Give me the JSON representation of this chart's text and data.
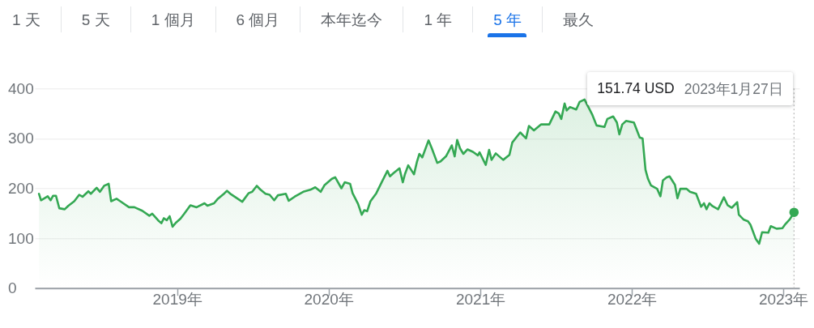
{
  "chart_data": {
    "type": "area",
    "color": "#34a853",
    "x": [
      "2018-02-02",
      "2018-02-07",
      "2018-02-23",
      "2018-03-02",
      "2018-03-08",
      "2018-03-15",
      "2018-03-23",
      "2018-04-05",
      "2018-04-14",
      "2018-04-28",
      "2018-05-10",
      "2018-05-18",
      "2018-06-01",
      "2018-06-07",
      "2018-06-21",
      "2018-06-29",
      "2018-07-09",
      "2018-07-20",
      "2018-07-26",
      "2018-08-08",
      "2018-08-17",
      "2018-09-07",
      "2018-09-20",
      "2018-10-09",
      "2018-10-26",
      "2018-11-02",
      "2018-11-16",
      "2018-11-24",
      "2018-11-30",
      "2018-12-07",
      "2018-12-14",
      "2018-12-21",
      "2018-12-29",
      "2019-01-09",
      "2019-01-18",
      "2019-02-02",
      "2019-02-17",
      "2019-03-08",
      "2019-03-15",
      "2019-03-31",
      "2019-04-08",
      "2019-04-25",
      "2019-05-01",
      "2019-05-11",
      "2019-06-07",
      "2019-06-22",
      "2019-07-01",
      "2019-07-12",
      "2019-07-20",
      "2019-08-02",
      "2019-08-12",
      "2019-08-23",
      "2019-09-01",
      "2019-09-20",
      "2019-09-27",
      "2019-10-11",
      "2019-11-01",
      "2019-11-18",
      "2019-11-30",
      "2019-12-13",
      "2019-12-22",
      "2020-01-09",
      "2020-01-17",
      "2020-02-01",
      "2020-02-09",
      "2020-02-22",
      "2020-02-28",
      "2020-03-12",
      "2020-03-21",
      "2020-03-27",
      "2020-04-03",
      "2020-04-11",
      "2020-04-25",
      "2020-05-08",
      "2020-05-22",
      "2020-05-28",
      "2020-06-05",
      "2020-06-20",
      "2020-06-28",
      "2020-07-03",
      "2020-07-11",
      "2020-07-25",
      "2020-08-01",
      "2020-08-07",
      "2020-08-14",
      "2020-08-29",
      "2020-09-06",
      "2020-09-19",
      "2020-09-27",
      "2020-10-10",
      "2020-10-24",
      "2020-10-31",
      "2020-11-06",
      "2020-11-13",
      "2020-11-21",
      "2020-12-01",
      "2020-12-14",
      "2020-12-26",
      "2020-12-30",
      "2021-01-14",
      "2021-01-22",
      "2021-01-28",
      "2021-02-07",
      "2021-02-25",
      "2021-03-12",
      "2021-03-19",
      "2021-04-07",
      "2021-04-21",
      "2021-04-28",
      "2021-05-10",
      "2021-05-27",
      "2021-06-16",
      "2021-07-01",
      "2021-07-09",
      "2021-07-15",
      "2021-07-23",
      "2021-07-28",
      "2021-08-05",
      "2021-08-20",
      "2021-08-28",
      "2021-09-09",
      "2021-09-28",
      "2021-10-08",
      "2021-10-27",
      "2021-11-03",
      "2021-11-17",
      "2021-11-26",
      "2021-12-02",
      "2021-12-09",
      "2021-12-18",
      "2022-01-06",
      "2022-01-20",
      "2022-01-27",
      "2022-02-03",
      "2022-02-09",
      "2022-02-16",
      "2022-03-03",
      "2022-03-11",
      "2022-03-17",
      "2022-03-26",
      "2022-04-02",
      "2022-04-15",
      "2022-04-21",
      "2022-04-28",
      "2022-05-13",
      "2022-05-21",
      "2022-06-05",
      "2022-06-17",
      "2022-06-24",
      "2022-06-30",
      "2022-07-07",
      "2022-07-15",
      "2022-07-28",
      "2022-08-11",
      "2022-08-20",
      "2022-08-30",
      "2022-09-12",
      "2022-09-16",
      "2022-09-28",
      "2022-10-08",
      "2022-10-14",
      "2022-10-27",
      "2022-11-04",
      "2022-11-11",
      "2022-11-26",
      "2022-12-02",
      "2022-12-16",
      "2022-12-30",
      "2023-01-06",
      "2023-01-17",
      "2023-01-27"
    ],
    "values": [
      189,
      176,
      184,
      176,
      185,
      185,
      160,
      158,
      165,
      174,
      187,
      183,
      194,
      189,
      201,
      193,
      205,
      209,
      174,
      179,
      174,
      162,
      162,
      155,
      145,
      149,
      136,
      130,
      140,
      136,
      144,
      123,
      131,
      139,
      149,
      166,
      162,
      170,
      165,
      170,
      178,
      190,
      195,
      188,
      173,
      190,
      193,
      205,
      198,
      189,
      187,
      176,
      186,
      189,
      175,
      183,
      193,
      197,
      202,
      193,
      206,
      219,
      222,
      200,
      212,
      209,
      190,
      169,
      147,
      156,
      154,
      174,
      190,
      212,
      235,
      224,
      230,
      240,
      212,
      228,
      246,
      228,
      253,
      269,
      262,
      296,
      280,
      251,
      254,
      264,
      286,
      264,
      297,
      280,
      269,
      278,
      273,
      266,
      272,
      247,
      277,
      257,
      270,
      257,
      267,
      292,
      312,
      300,
      325,
      316,
      328,
      328,
      354,
      350,
      339,
      370,
      356,
      363,
      358,
      373,
      378,
      347,
      326,
      323,
      339,
      344,
      332,
      308,
      328,
      335,
      332,
      302,
      300,
      237,
      219,
      206,
      199,
      184,
      216,
      222,
      224,
      207,
      180,
      199,
      199,
      193,
      189,
      163,
      170,
      158,
      170,
      164,
      158,
      182,
      166,
      161,
      172,
      147,
      137,
      134,
      127,
      98,
      89,
      112,
      111,
      124,
      119,
      120,
      128,
      138,
      151.74
    ],
    "xlim": [
      "2018-01-23",
      "2023-02-09"
    ],
    "xticks": [
      {
        "value": "2019-01-01",
        "label": "2019年"
      },
      {
        "value": "2020-01-01",
        "label": "2020年"
      },
      {
        "value": "2021-01-01",
        "label": "2021年"
      },
      {
        "value": "2022-01-01",
        "label": "2022年"
      },
      {
        "value": "2023-01-01",
        "label": "2023年"
      }
    ],
    "ylim": [
      0,
      400
    ],
    "yticks": [
      0,
      100,
      200,
      300,
      400
    ],
    "grid": "y",
    "ref_lines": [
      {
        "axis": "x",
        "value": "2023-01-27",
        "line_style": "dotted",
        "color": "#bdbdbd"
      }
    ],
    "annotations": [
      "1 天",
      "5 天",
      "1 個月",
      "6 個月",
      "本年迄今",
      "1 年",
      "5 年",
      "最久",
      "151.74 USD",
      "2023年1月27日"
    ]
  }
}
